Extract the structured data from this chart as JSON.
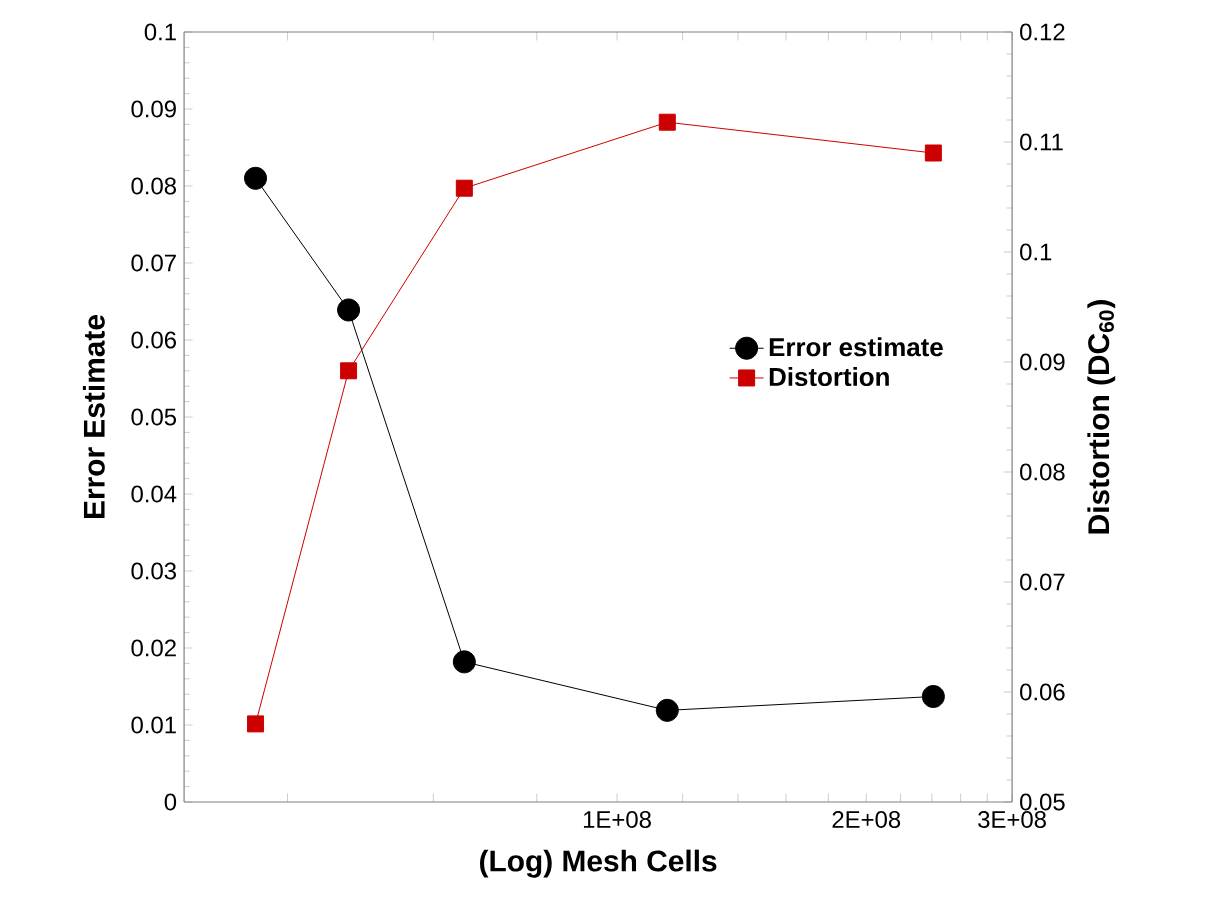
{
  "chart_data": {
    "type": "line",
    "xlabel": "(Log) Mesh Cells",
    "ylabel": "Error Estimate",
    "y2label": "Distortion (DC$_{60}$)",
    "log": "x",
    "xlim": [
      30000000,
      300000000
    ],
    "xticks": [
      {
        "value": 40000000,
        "label": null
      },
      {
        "value": 60000000,
        "label": null
      },
      {
        "value": 80000000,
        "label": null
      },
      {
        "value": 100000000,
        "label": "1E+08"
      },
      {
        "value": 120000000,
        "label": null
      },
      {
        "value": 140000000,
        "label": null
      },
      {
        "value": 160000000,
        "label": null
      },
      {
        "value": 180000000,
        "label": null
      },
      {
        "value": 200000000,
        "label": "2E+08"
      },
      {
        "value": 220000000,
        "label": null
      },
      {
        "value": 240000000,
        "label": null
      },
      {
        "value": 260000000,
        "label": null
      },
      {
        "value": 280000000,
        "label": null
      },
      {
        "value": 300000000,
        "label": "3E+08"
      }
    ],
    "ylim": [
      0,
      0.1
    ],
    "yticks": [
      0,
      0.01,
      0.02,
      0.03,
      0.04,
      0.05,
      0.06,
      0.07,
      0.08,
      0.09,
      0.1
    ],
    "y2lim": [
      0.05,
      0.12
    ],
    "y2ticks": [
      0.05,
      0.06,
      0.07,
      0.08,
      0.09,
      0.1,
      0.11,
      0.12
    ],
    "x": [
      36600000,
      47400000,
      65400000,
      115000000,
      241000000
    ],
    "series": [
      {
        "name": "Error estimate",
        "color": "#000000",
        "marker": "circle",
        "values": [
          0.081,
          0.0639,
          0.0182,
          0.0119,
          0.0137
        ]
      },
      {
        "name": "Distortion",
        "color": "#cc0000",
        "marker": "square",
        "axis": "y2",
        "values": [
          0.0571,
          0.0892,
          0.1058,
          0.1118,
          0.109
        ]
      }
    ],
    "legend": "right",
    "grid": false
  }
}
